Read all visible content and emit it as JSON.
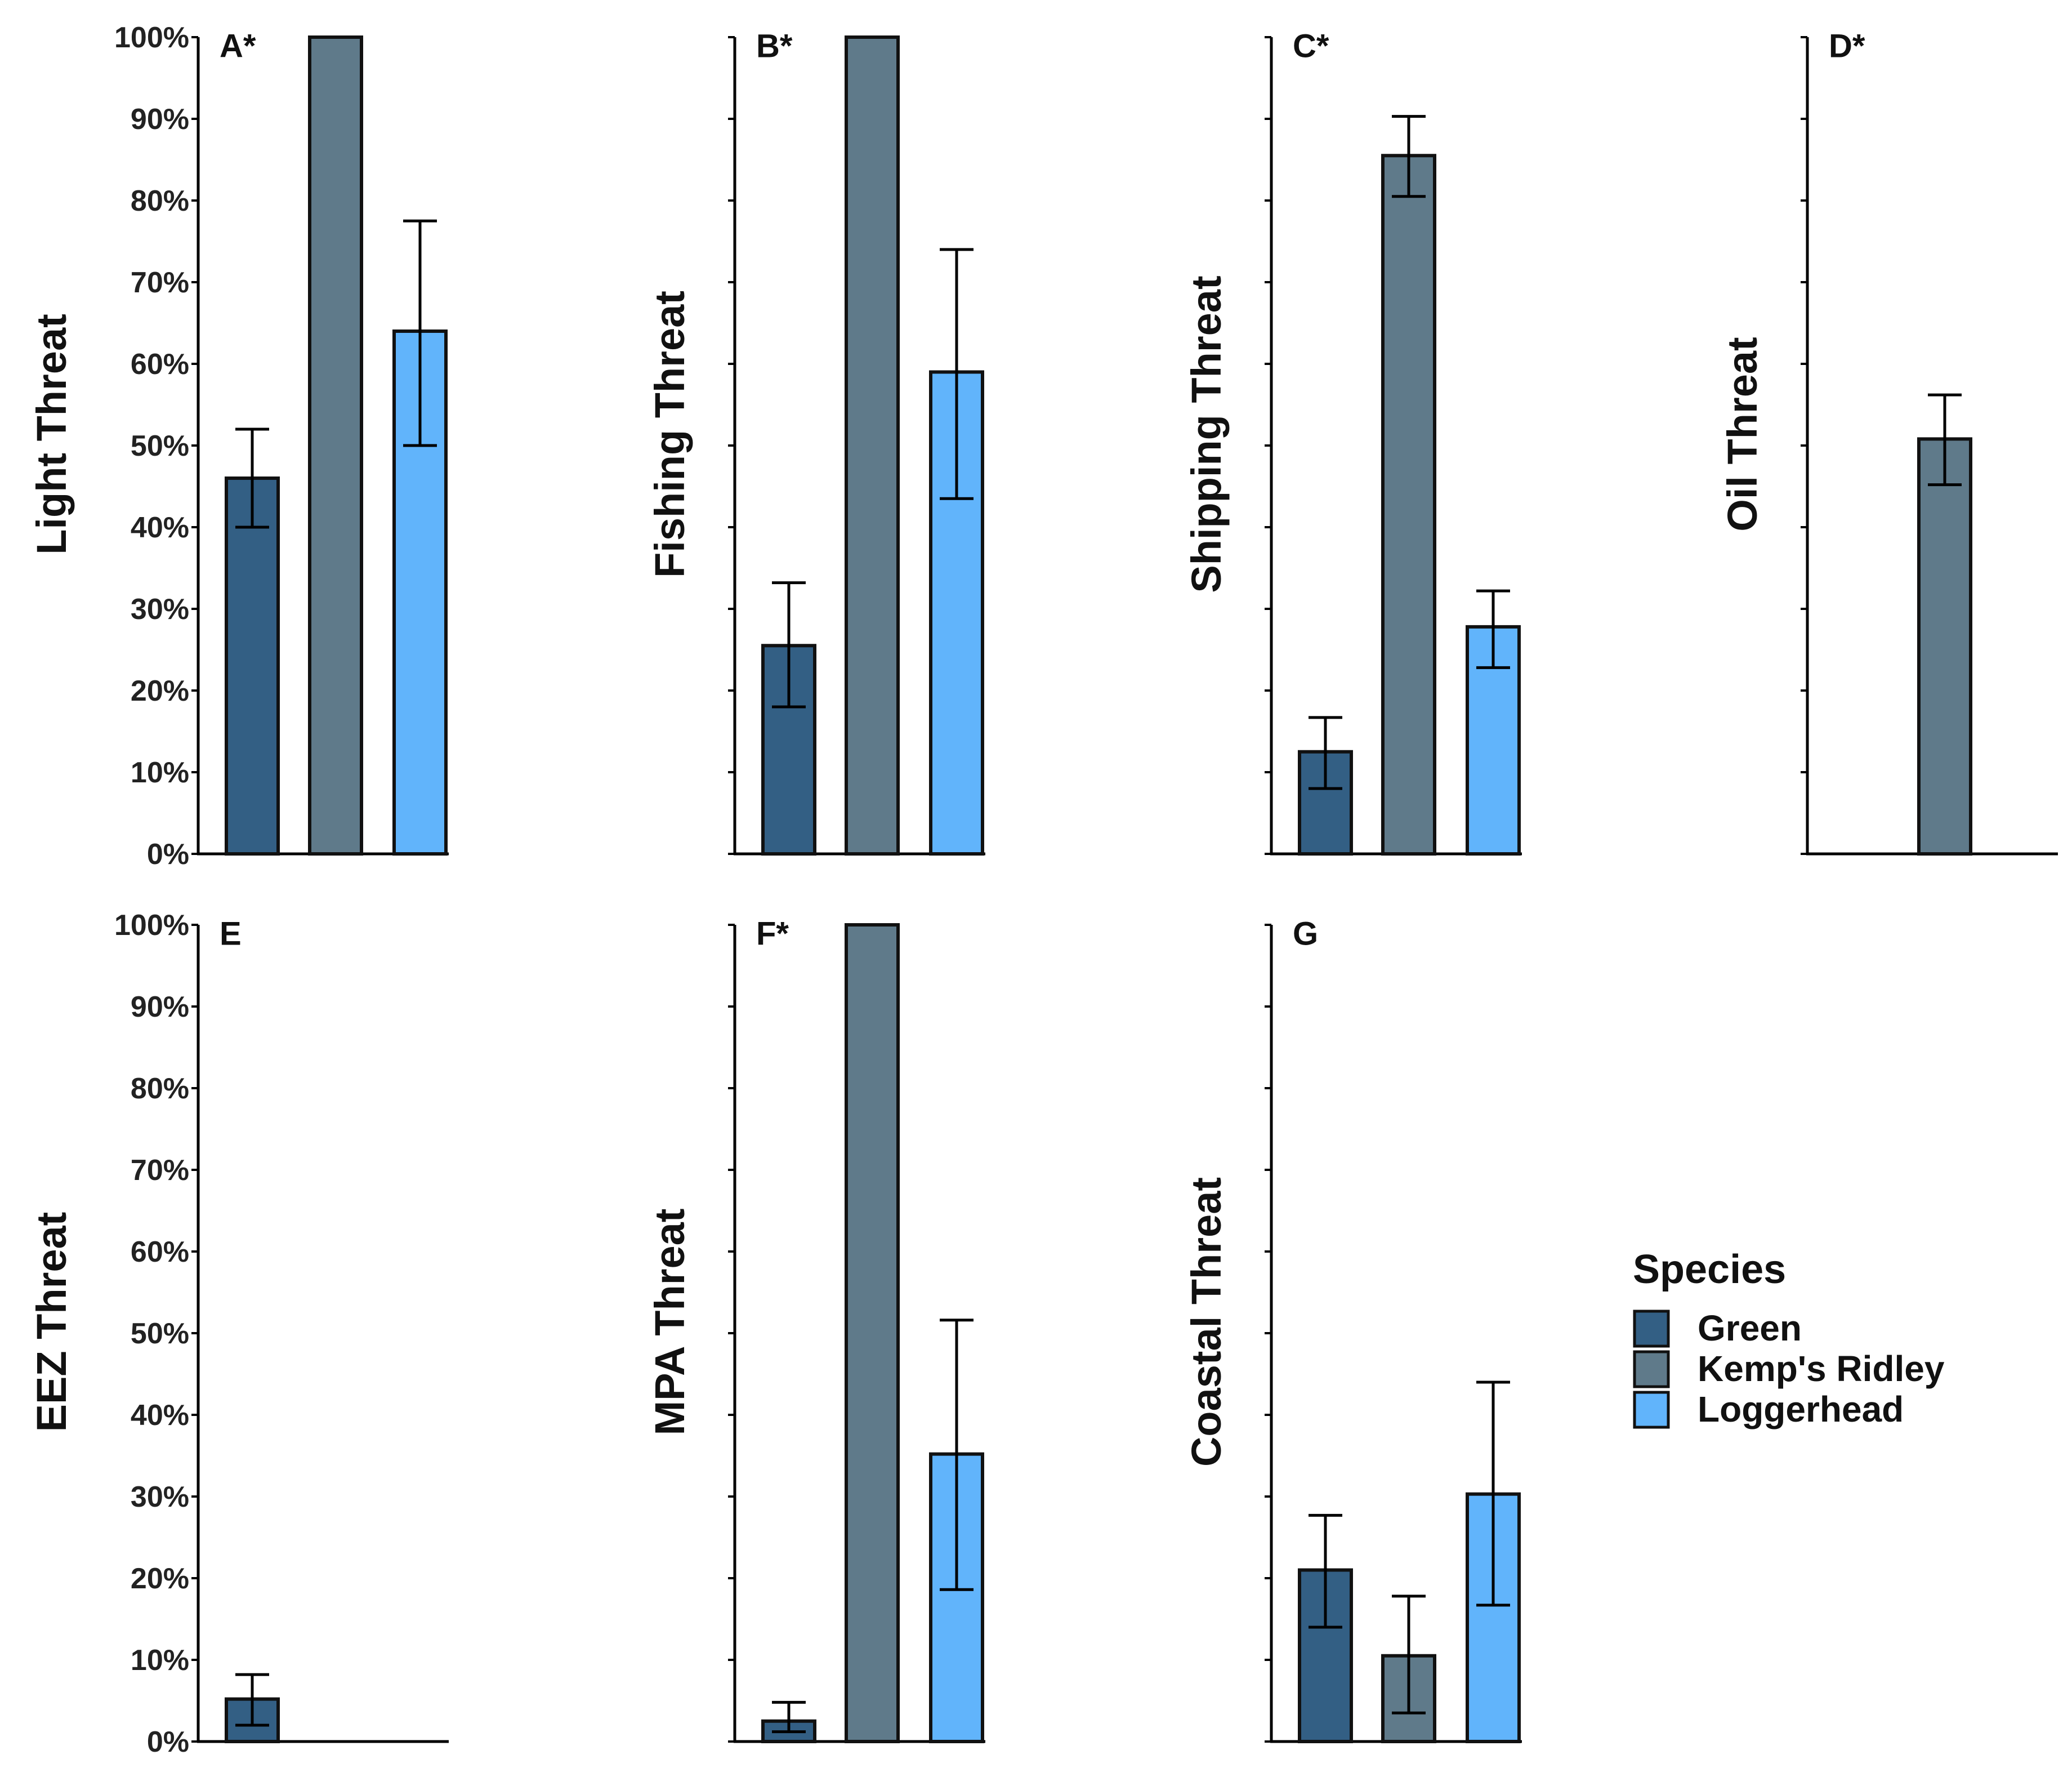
{
  "colors": {
    "Green": "#335f84",
    "Kemp's Ridley": "#5f7a8a",
    "Loggerhead": "#61b4fb"
  },
  "chart_data": [
    {
      "type": "bar",
      "panel": "A*",
      "ylabel": "Light Threat",
      "ylim": [
        0,
        1
      ],
      "y_tick_labels_shown": true,
      "categories": [
        "Green",
        "Kemp's Ridley",
        "Loggerhead"
      ],
      "values": [
        0.46,
        1.0,
        0.64
      ],
      "error_low": [
        0.4,
        null,
        0.5
      ],
      "error_high": [
        0.52,
        null,
        0.775
      ]
    },
    {
      "type": "bar",
      "panel": "B*",
      "ylabel": "Fishing Threat",
      "ylim": [
        0,
        1
      ],
      "y_tick_labels_shown": false,
      "categories": [
        "Green",
        "Kemp's Ridley",
        "Loggerhead"
      ],
      "values": [
        0.255,
        1.0,
        0.59
      ],
      "error_low": [
        0.18,
        null,
        0.435
      ],
      "error_high": [
        0.332,
        null,
        0.74
      ]
    },
    {
      "type": "bar",
      "panel": "C*",
      "ylabel": "Shipping Threat",
      "ylim": [
        0,
        1
      ],
      "y_tick_labels_shown": false,
      "categories": [
        "Green",
        "Kemp's Ridley",
        "Loggerhead"
      ],
      "values": [
        0.125,
        0.855,
        0.278
      ],
      "error_low": [
        0.08,
        0.805,
        0.228
      ],
      "error_high": [
        0.167,
        0.903,
        0.322
      ]
    },
    {
      "type": "bar",
      "panel": "D*",
      "ylabel": "Oil Threat",
      "ylim": [
        0,
        1
      ],
      "y_tick_labels_shown": false,
      "categories": [
        "Green",
        "Kemp's Ridley",
        "Loggerhead"
      ],
      "values": [
        null,
        0.508,
        null
      ],
      "error_low": [
        null,
        0.452,
        null
      ],
      "error_high": [
        null,
        0.562,
        null
      ]
    },
    {
      "type": "bar",
      "panel": "E",
      "ylabel": "EEZ Threat",
      "ylim": [
        0,
        1
      ],
      "y_tick_labels_shown": true,
      "categories": [
        "Green",
        "Kemp's Ridley",
        "Loggerhead"
      ],
      "values": [
        0.052,
        null,
        null
      ],
      "error_low": [
        0.02,
        null,
        null
      ],
      "error_high": [
        0.082,
        null,
        null
      ]
    },
    {
      "type": "bar",
      "panel": "F*",
      "ylabel": "MPA Threat",
      "ylim": [
        0,
        1
      ],
      "y_tick_labels_shown": false,
      "categories": [
        "Green",
        "Kemp's Ridley",
        "Loggerhead"
      ],
      "values": [
        0.025,
        1.0,
        0.352
      ],
      "error_low": [
        0.012,
        null,
        0.186
      ],
      "error_high": [
        0.048,
        null,
        0.516
      ]
    },
    {
      "type": "bar",
      "panel": "G",
      "ylabel": "Coastal Threat",
      "ylim": [
        0,
        1
      ],
      "y_tick_labels_shown": false,
      "categories": [
        "Green",
        "Kemp's Ridley",
        "Loggerhead"
      ],
      "values": [
        0.21,
        0.105,
        0.303
      ],
      "error_low": [
        0.14,
        0.035,
        0.167
      ],
      "error_high": [
        0.277,
        0.178,
        0.44
      ]
    }
  ],
  "y_tick_labels": [
    "0%",
    "10%",
    "20%",
    "30%",
    "40%",
    "50%",
    "60%",
    "70%",
    "80%",
    "90%",
    "100%"
  ],
  "legend": {
    "title": "Species",
    "placement": "right",
    "items": [
      "Green",
      "Kemp's Ridley",
      "Loggerhead"
    ]
  }
}
